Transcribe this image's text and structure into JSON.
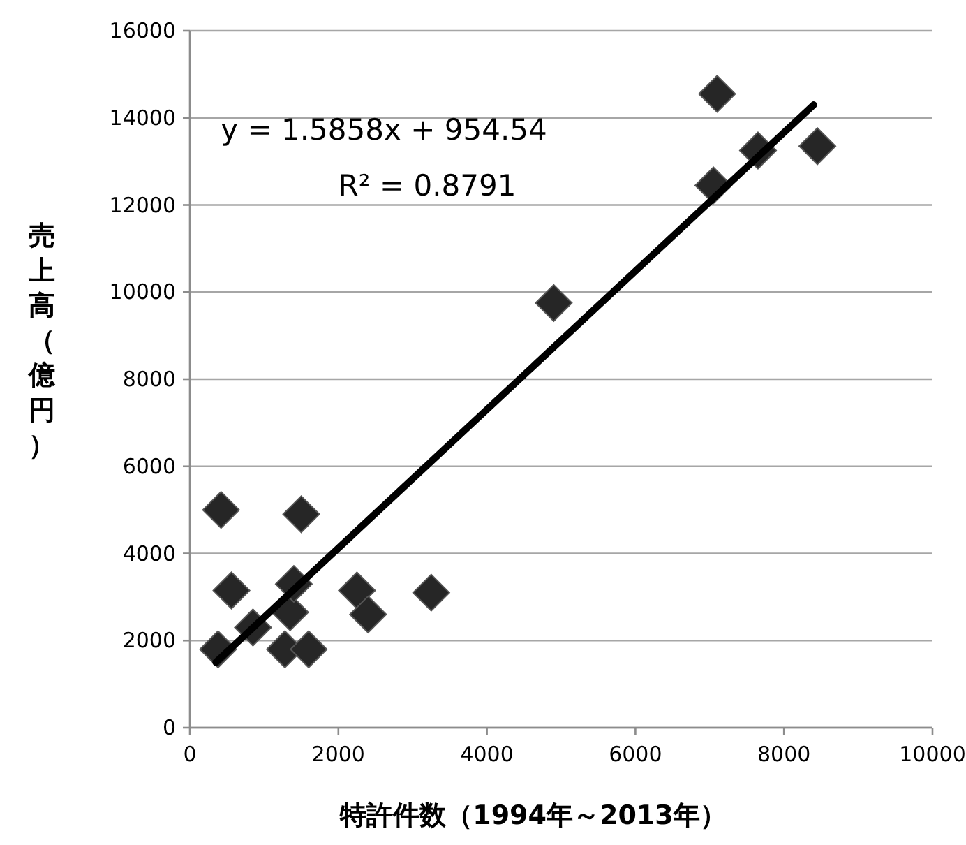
{
  "chart_data": {
    "type": "scatter",
    "xlabel": "特許件数（1994年～2013年）",
    "ylabel": "売上高（億円）",
    "annotations": [
      "y = 1.5858x + 954.54",
      "R² = 0.8791"
    ],
    "series": [
      {
        "color": "#262626",
        "marker": "diamond",
        "x": [
          380,
          420,
          560,
          850,
          1280,
          1350,
          1400,
          1500,
          1600,
          2250,
          2400,
          3250,
          4900,
          7050,
          7100,
          7650,
          8450
        ],
        "values": [
          1800,
          5000,
          3150,
          2300,
          1800,
          2650,
          3300,
          4900,
          1800,
          3150,
          2600,
          3100,
          9750,
          12450,
          14550,
          13250,
          13350
        ]
      },
      {
        "type": "line",
        "color": "#000000",
        "x": [
          350,
          8400
        ],
        "values": [
          1500,
          14300
        ]
      }
    ],
    "xlim": [
      0,
      10000
    ],
    "xticks": [
      0,
      2000,
      4000,
      6000,
      8000,
      10000
    ],
    "ylim": [
      0,
      16000
    ],
    "yticks": [
      0,
      2000,
      4000,
      6000,
      8000,
      10000,
      12000,
      14000,
      16000
    ],
    "grid": "y"
  }
}
